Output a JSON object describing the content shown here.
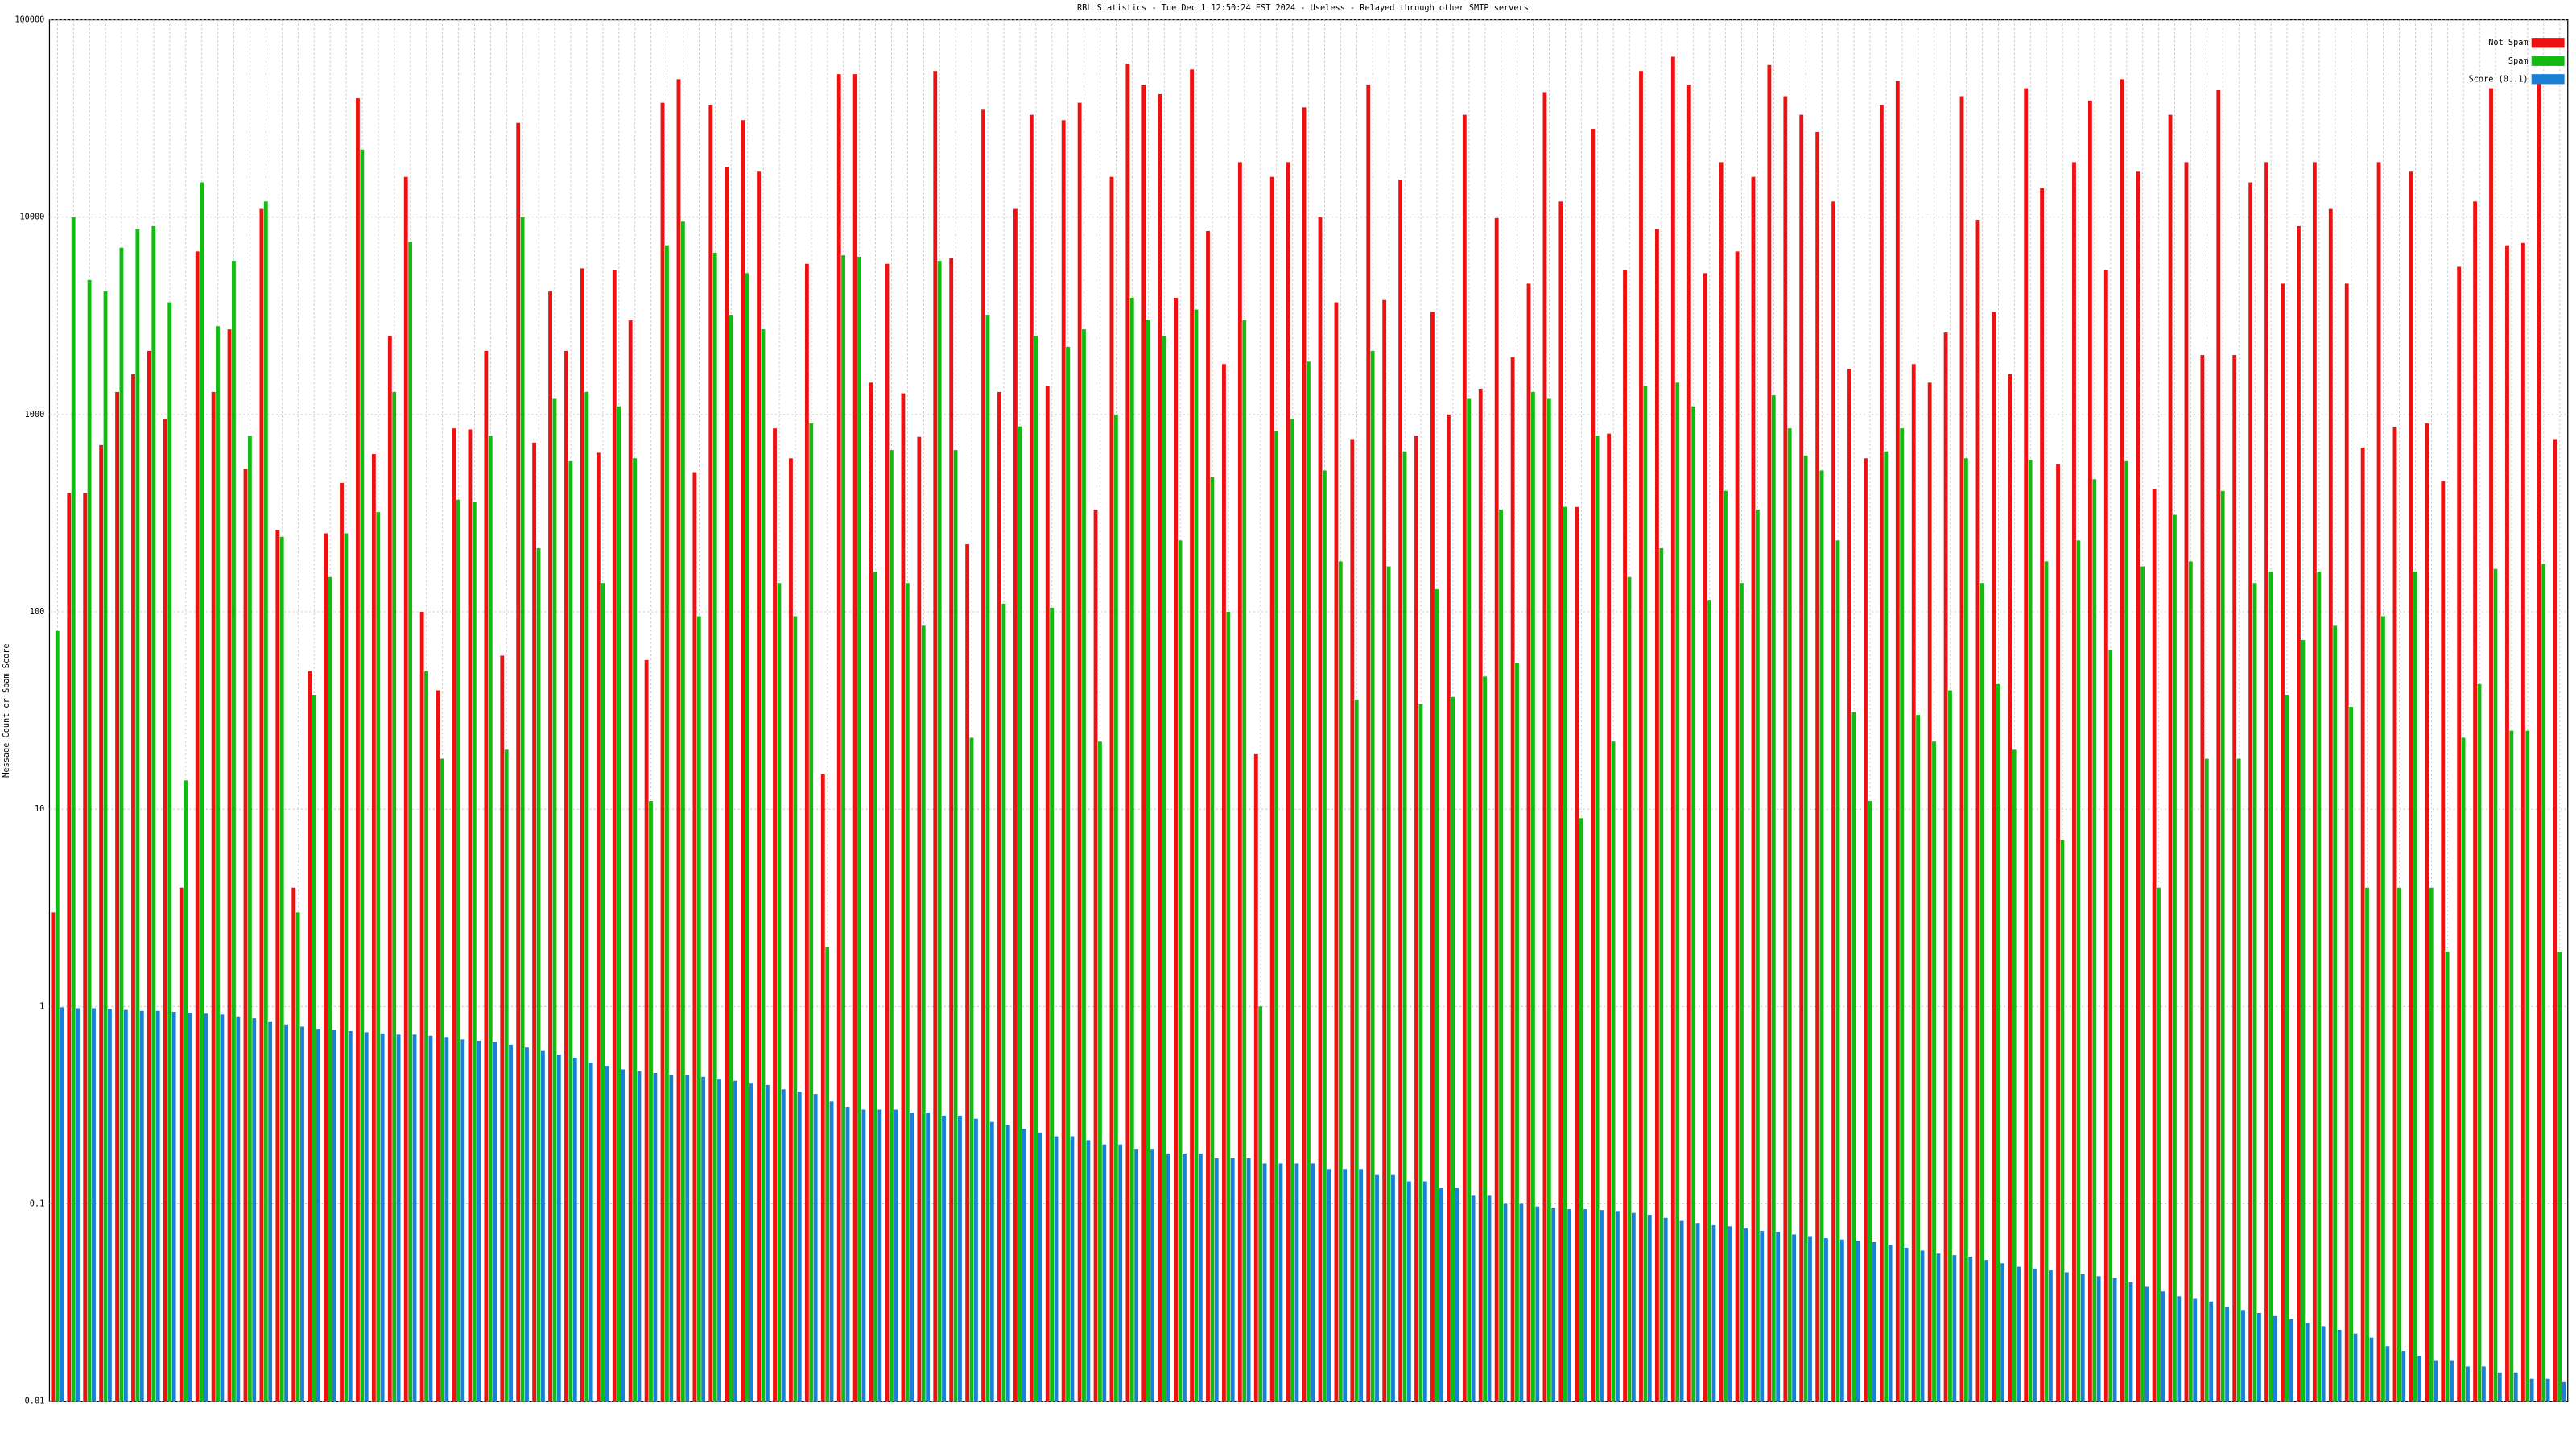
{
  "chart_data": {
    "type": "bar",
    "title": "RBL Statistics - Tue Dec  1 12:50:24 EST 2024 - Useless - Relayed through other SMTP servers",
    "y_label": "Message Count or Spam Score",
    "log_scale": true,
    "grid": true,
    "legend": "upper right",
    "ylim": [
      0.01,
      100000
    ],
    "yticks": [
      0.01,
      0.1,
      1,
      10,
      100,
      1000,
      10000,
      100000
    ],
    "categories": [
      null,
      null,
      null,
      null,
      null,
      null,
      null,
      null,
      null,
      null,
      null,
      null,
      null,
      null,
      null,
      null,
      null,
      null,
      null,
      null,
      null,
      null,
      null,
      null,
      null,
      null,
      null,
      null,
      null,
      null,
      null,
      null,
      null,
      null,
      null,
      null,
      null,
      null,
      null,
      null,
      null,
      null,
      null,
      null,
      null,
      null,
      null,
      null,
      null,
      null,
      null,
      null,
      null,
      null,
      null,
      null,
      null,
      null,
      null,
      null,
      null,
      null,
      null,
      null,
      null,
      null,
      null,
      null,
      null,
      null,
      null,
      null,
      null,
      null,
      null,
      null,
      null,
      null,
      null,
      null,
      null,
      null,
      null,
      null,
      null,
      null,
      null,
      null,
      null,
      null,
      null,
      null,
      null,
      null,
      null,
      null,
      null,
      null,
      null,
      null,
      null,
      null,
      null,
      null,
      null,
      null,
      null,
      null,
      null,
      null,
      null,
      null,
      null,
      null,
      null,
      null,
      null,
      null,
      null,
      null,
      null,
      null,
      null,
      null,
      null,
      null,
      null,
      null,
      null,
      null,
      null,
      null,
      null,
      null,
      null,
      null,
      null,
      null,
      null,
      null,
      null,
      null,
      null,
      null,
      null,
      null,
      null,
      null,
      null,
      null,
      null,
      null,
      null,
      null,
      null,
      null,
      null
    ],
    "series": [
      {
        "name": "Not Spam",
        "color": "#ee1111",
        "values": [
          3,
          400,
          400,
          700,
          1300,
          1600,
          2100,
          950,
          4,
          6700,
          1300,
          2700,
          530,
          11000,
          260,
          4,
          50,
          250,
          450,
          40000,
          630,
          2500,
          16000,
          100,
          40,
          850,
          840,
          2100,
          60,
          30000,
          720,
          4200,
          2100,
          5500,
          640,
          5400,
          3000,
          57,
          38000,
          50000,
          510,
          37000,
          18000,
          31000,
          17000,
          850,
          600,
          5800,
          15,
          53000,
          53000,
          1450,
          5800,
          1280,
          770,
          55000,
          6200,
          220,
          35000,
          1300,
          11000,
          33000,
          1400,
          31000,
          38000,
          330,
          16000,
          60000,
          47000,
          42000,
          3900,
          56000,
          8500,
          1800,
          19000,
          19,
          16000,
          19000,
          36000,
          10000,
          3700,
          750,
          47000,
          3800,
          15500,
          780,
          3300,
          1000,
          33000,
          1350,
          9900,
          1950,
          4600,
          43000,
          12000,
          340,
          28000,
          800,
          5400,
          55000,
          8700,
          65000,
          47000,
          5200,
          19000,
          6700,
          16000,
          59000,
          41000,
          33000,
          27000,
          12000,
          1700,
          600,
          37000,
          49000,
          1800,
          1450,
          2600,
          41000,
          9700,
          3300,
          1600,
          45000,
          14000,
          560,
          19000,
          39000,
          5400,
          50000,
          17000,
          420,
          33000,
          19000,
          2000,
          44000,
          2000,
          15000,
          19000,
          4600,
          9000,
          19000,
          11000,
          4600,
          680,
          19000,
          860,
          17000,
          900,
          460,
          5600,
          12000,
          45000,
          7200,
          7400,
          50000,
          750
        ]
      },
      {
        "name": "Spam",
        "color": "#11bb11",
        "values": [
          80,
          10000,
          4800,
          4200,
          7000,
          8700,
          9000,
          3700,
          14,
          15000,
          2800,
          6000,
          780,
          12000,
          240,
          3,
          38,
          150,
          250,
          22000,
          320,
          1300,
          7500,
          50,
          18,
          370,
          360,
          780,
          20,
          10000,
          210,
          1200,
          580,
          1300,
          140,
          1100,
          600,
          11,
          7200,
          9500,
          95,
          6600,
          3200,
          5200,
          2700,
          140,
          95,
          900,
          2,
          6400,
          6300,
          160,
          660,
          140,
          85,
          6000,
          660,
          23,
          3200,
          110,
          870,
          2500,
          105,
          2200,
          2700,
          22,
          1000,
          3900,
          3000,
          2500,
          230,
          3400,
          480,
          100,
          3000,
          1,
          820,
          950,
          1850,
          520,
          180,
          36,
          2100,
          170,
          650,
          34,
          130,
          37,
          1200,
          47,
          330,
          55,
          1300,
          1200,
          340,
          9,
          780,
          22,
          150,
          1400,
          210,
          1450,
          1100,
          115,
          410,
          140,
          330,
          1250,
          850,
          620,
          520,
          230,
          31,
          11,
          650,
          850,
          30,
          22,
          40,
          600,
          140,
          43,
          20,
          590,
          180,
          7,
          230,
          470,
          64,
          580,
          170,
          4,
          310,
          180,
          18,
          410,
          18,
          140,
          160,
          38,
          72,
          160,
          85,
          33,
          4,
          95,
          4,
          160,
          4,
          1.9,
          23,
          43,
          165,
          25,
          25,
          175,
          1.9
        ]
      },
      {
        "name": "Score (0..1)",
        "color": "#1a7fd6",
        "values": [
          0.99,
          0.98,
          0.98,
          0.97,
          0.96,
          0.95,
          0.95,
          0.94,
          0.93,
          0.92,
          0.91,
          0.89,
          0.87,
          0.84,
          0.81,
          0.79,
          0.77,
          0.76,
          0.75,
          0.74,
          0.73,
          0.72,
          0.72,
          0.71,
          0.7,
          0.68,
          0.67,
          0.66,
          0.64,
          0.62,
          0.6,
          0.57,
          0.55,
          0.52,
          0.5,
          0.48,
          0.47,
          0.46,
          0.45,
          0.45,
          0.44,
          0.43,
          0.42,
          0.41,
          0.4,
          0.38,
          0.37,
          0.36,
          0.33,
          0.31,
          0.3,
          0.3,
          0.3,
          0.29,
          0.29,
          0.28,
          0.28,
          0.27,
          0.26,
          0.25,
          0.24,
          0.23,
          0.22,
          0.22,
          0.21,
          0.2,
          0.2,
          0.19,
          0.19,
          0.18,
          0.18,
          0.18,
          0.17,
          0.17,
          0.17,
          0.16,
          0.16,
          0.16,
          0.16,
          0.15,
          0.15,
          0.15,
          0.14,
          0.14,
          0.13,
          0.13,
          0.12,
          0.12,
          0.11,
          0.11,
          0.1,
          0.1,
          0.097,
          0.095,
          0.094,
          0.094,
          0.093,
          0.092,
          0.09,
          0.088,
          0.085,
          0.082,
          0.08,
          0.078,
          0.077,
          0.075,
          0.073,
          0.072,
          0.07,
          0.068,
          0.067,
          0.066,
          0.065,
          0.064,
          0.062,
          0.06,
          0.058,
          0.056,
          0.055,
          0.054,
          0.052,
          0.05,
          0.048,
          0.047,
          0.046,
          0.045,
          0.044,
          0.043,
          0.042,
          0.04,
          0.038,
          0.036,
          0.034,
          0.033,
          0.032,
          0.03,
          0.029,
          0.028,
          0.027,
          0.026,
          0.025,
          0.024,
          0.023,
          0.022,
          0.021,
          0.019,
          0.018,
          0.017,
          0.016,
          0.016,
          0.015,
          0.015,
          0.014,
          0.014,
          0.013,
          0.013,
          0.0125
        ]
      }
    ]
  }
}
